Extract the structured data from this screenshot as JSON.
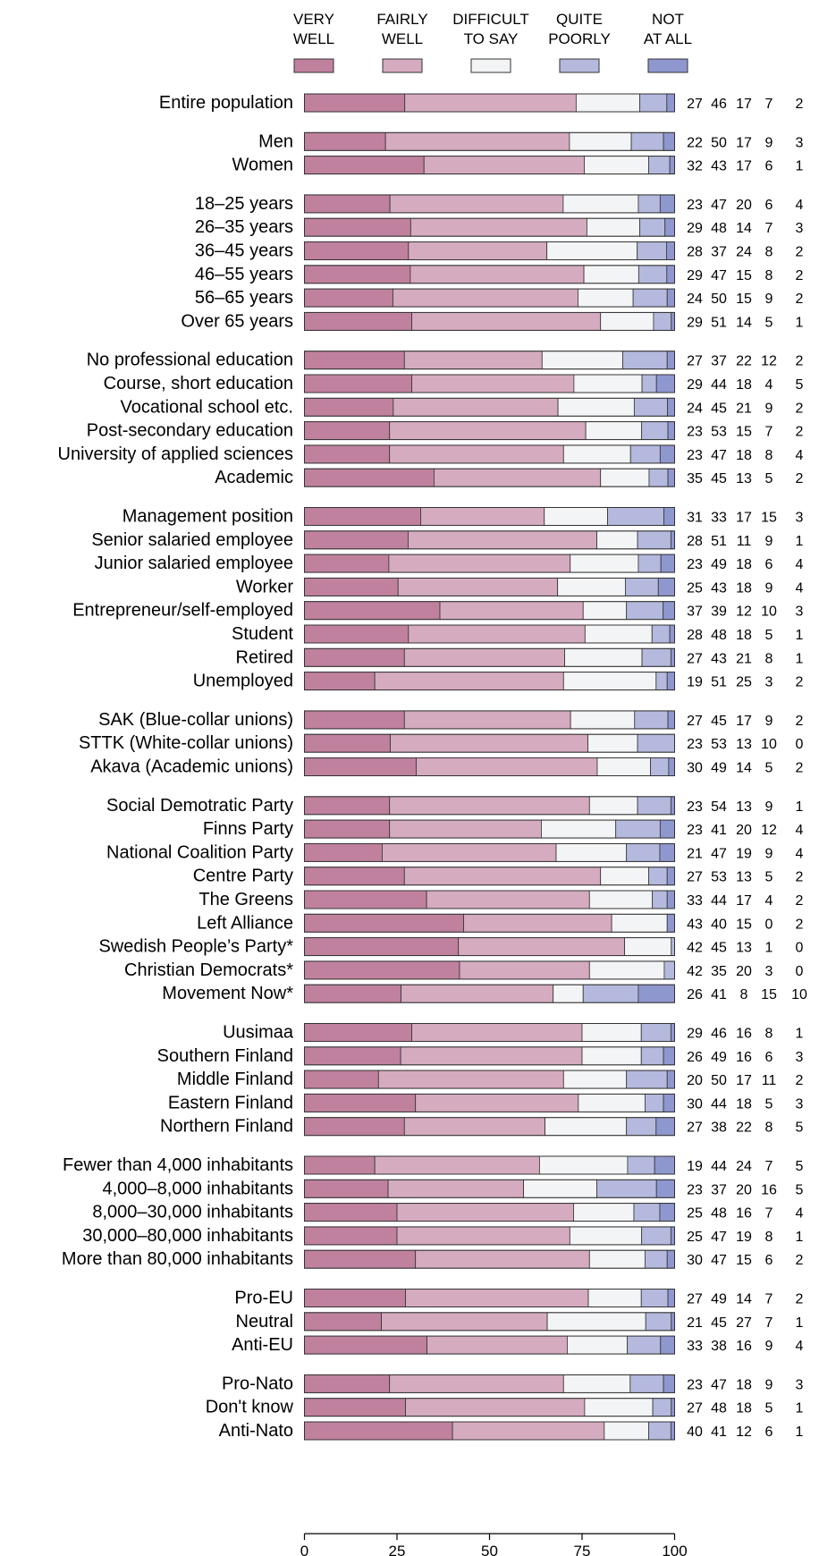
{
  "chart_data": {
    "type": "bar",
    "stacked": true,
    "orientation": "horizontal",
    "xlim": [
      0,
      100
    ],
    "xticks": [
      "0",
      "25",
      "50",
      "75",
      "100"
    ],
    "legend_position": "top",
    "series": [
      {
        "name": "VERY WELL",
        "name_lines": [
          "VERY",
          "WELL"
        ],
        "color": "#c0819e"
      },
      {
        "name": "FAIRLY WELL",
        "name_lines": [
          "FAIRLY",
          "WELL"
        ],
        "color": "#d5abbf"
      },
      {
        "name": "DIFFICULT TO SAY",
        "name_lines": [
          "DIFFICULT",
          "TO SAY"
        ],
        "color": "#f3f4f6"
      },
      {
        "name": "QUITE POORLY",
        "name_lines": [
          "QUITE",
          "POORLY"
        ],
        "color": "#b4b9dd"
      },
      {
        "name": "NOT AT ALL",
        "name_lines": [
          "NOT",
          "AT ALL"
        ],
        "color": "#8f97cf"
      }
    ],
    "groups": [
      {
        "rows": [
          {
            "label": "Entire population",
            "values": [
              27,
              46,
              17,
              7,
              2
            ],
            "bar": [
              27.1,
              46.3,
              17.2,
              7.3,
              2.1
            ]
          }
        ]
      },
      {
        "rows": [
          {
            "label": "Men",
            "values": [
              22,
              50,
              17,
              9,
              3
            ],
            "bar": [
              21.9,
              49.7,
              16.7,
              8.7,
              3.0
            ]
          },
          {
            "label": "Women",
            "values": [
              32,
              43,
              17,
              6,
              1
            ],
            "bar": [
              32.3,
              43.3,
              17.4,
              5.7,
              1.3
            ]
          }
        ]
      },
      {
        "rows": [
          {
            "label": "18–25 years",
            "values": [
              23,
              47,
              20,
              6,
              4
            ],
            "bar": [
              23.1,
              46.8,
              20.3,
              5.9,
              3.9
            ]
          },
          {
            "label": "26–35 years",
            "values": [
              29,
              48,
              14,
              7,
              3
            ],
            "bar": [
              28.7,
              47.6,
              14.3,
              6.8,
              2.6
            ]
          },
          {
            "label": "36–45 years",
            "values": [
              28,
              37,
              24,
              8,
              2
            ],
            "bar": [
              28.1,
              37.4,
              24.4,
              7.9,
              2.2
            ]
          },
          {
            "label": "46–55 years",
            "values": [
              29,
              47,
              15,
              8,
              2
            ],
            "bar": [
              28.6,
              46.9,
              14.8,
              7.6,
              2.1
            ]
          },
          {
            "label": "56–65 years",
            "values": [
              24,
              50,
              15,
              9,
              2
            ],
            "bar": [
              23.9,
              50.0,
              14.9,
              9.2,
              2.0
            ]
          },
          {
            "label": "Over 65 years",
            "values": [
              29,
              51,
              14,
              5,
              1
            ],
            "bar": [
              29.0,
              51.0,
              14.3,
              4.8,
              0.9
            ]
          }
        ]
      },
      {
        "rows": [
          {
            "label": "No professional education",
            "values": [
              27,
              37,
              22,
              12,
              2
            ],
            "bar": [
              27.0,
              37.2,
              21.8,
              12.0,
              2.0
            ]
          },
          {
            "label": "Course, short education",
            "values": [
              29,
              44,
              18,
              4,
              5
            ],
            "bar": [
              29.0,
              43.8,
              18.4,
              3.9,
              4.9
            ]
          },
          {
            "label": "Vocational school etc.",
            "values": [
              24,
              45,
              21,
              9,
              2
            ],
            "bar": [
              24.0,
              44.5,
              20.6,
              9.0,
              1.9
            ]
          },
          {
            "label": "Post-secondary education",
            "values": [
              23,
              53,
              15,
              7,
              2
            ],
            "bar": [
              23.0,
              53.0,
              15.1,
              7.1,
              1.8
            ]
          },
          {
            "label": "University of applied sciences",
            "values": [
              23,
              47,
              18,
              8,
              4
            ],
            "bar": [
              23.0,
              47.0,
              18.1,
              8.0,
              3.9
            ]
          },
          {
            "label": "Academic",
            "values": [
              35,
              45,
              13,
              5,
              2
            ],
            "bar": [
              35.0,
              45.0,
              13.1,
              5.1,
              1.8
            ]
          }
        ]
      },
      {
        "rows": [
          {
            "label": "Management position",
            "values": [
              31,
              33,
              17,
              15,
              3
            ],
            "bar": [
              31.4,
              33.4,
              17.1,
              15.2,
              2.9
            ]
          },
          {
            "label": "Senior salaried employee",
            "values": [
              28,
              51,
              11,
              9,
              1
            ],
            "bar": [
              28.0,
              51.0,
              11.0,
              9.0,
              1.0
            ]
          },
          {
            "label": "Junior salaried employee",
            "values": [
              23,
              49,
              18,
              6,
              4
            ],
            "bar": [
              22.8,
              49.0,
              18.4,
              6.1,
              3.7
            ]
          },
          {
            "label": "Worker",
            "values": [
              25,
              43,
              18,
              9,
              4
            ],
            "bar": [
              25.3,
              43.1,
              18.3,
              8.9,
              4.4
            ]
          },
          {
            "label": "Entrepreneur/self-employed",
            "values": [
              37,
              39,
              12,
              10,
              3
            ],
            "bar": [
              36.6,
              38.7,
              11.7,
              9.9,
              3.1
            ]
          },
          {
            "label": "Student",
            "values": [
              28,
              48,
              18,
              5,
              1
            ],
            "bar": [
              28.1,
              47.7,
              18.1,
              4.8,
              1.3
            ]
          },
          {
            "label": "Retired",
            "values": [
              27,
              43,
              21,
              8,
              1
            ],
            "bar": [
              27.0,
              43.3,
              20.9,
              7.8,
              1.0
            ]
          },
          {
            "label": "Unemployed",
            "values": [
              19,
              51,
              25,
              3,
              2
            ],
            "bar": [
              19.0,
              51.0,
              25.0,
              3.0,
              2.0
            ]
          }
        ]
      },
      {
        "rows": [
          {
            "label": "SAK (Blue-collar unions)",
            "values": [
              27,
              45,
              17,
              9,
              2
            ],
            "bar": [
              27.0,
              44.9,
              17.3,
              9.0,
              1.8
            ]
          },
          {
            "label": "STTK (White-collar unions)",
            "values": [
              23,
              53,
              13,
              10,
              0
            ],
            "bar": [
              23.2,
              53.4,
              13.4,
              10.0,
              0.0
            ]
          },
          {
            "label": "Akava (Academic unions)",
            "values": [
              30,
              49,
              14,
              5,
              2
            ],
            "bar": [
              30.2,
              48.9,
              14.4,
              4.9,
              1.6
            ]
          }
        ]
      },
      {
        "rows": [
          {
            "label": "Social Demotratic Party",
            "values": [
              23,
              54,
              13,
              9,
              1
            ],
            "bar": [
              23.0,
              54.0,
              13.0,
              9.0,
              1.0
            ]
          },
          {
            "label": "Finns Party",
            "values": [
              23,
              41,
              20,
              12,
              4
            ],
            "bar": [
              23.0,
              41.0,
              20.1,
              12.0,
              3.9
            ]
          },
          {
            "label": "National Coalition Party",
            "values": [
              21,
              47,
              19,
              9,
              4
            ],
            "bar": [
              21.0,
              47.0,
              19.0,
              9.0,
              4.0
            ]
          },
          {
            "label": "Centre Party",
            "values": [
              27,
              53,
              13,
              5,
              2
            ],
            "bar": [
              27.0,
              53.0,
              13.0,
              5.0,
              2.0
            ]
          },
          {
            "label": "The Greens",
            "values": [
              33,
              44,
              17,
              4,
              2
            ],
            "bar": [
              33.0,
              44.0,
              17.0,
              4.0,
              2.0
            ]
          },
          {
            "label": "Left Alliance",
            "values": [
              43,
              40,
              15,
              0,
              2
            ],
            "bar": [
              43.0,
              40.0,
              15.0,
              0.0,
              2.0
            ]
          },
          {
            "label": "Swedish People’s Party*",
            "values": [
              42,
              45,
              13,
              1,
              0
            ],
            "bar": [
              41.6,
              44.9,
              12.6,
              0.9,
              0.0
            ]
          },
          {
            "label": "Christian Democrats*",
            "values": [
              42,
              35,
              20,
              3,
              0
            ],
            "bar": [
              41.9,
              35.1,
              20.2,
              2.8,
              0.0
            ]
          },
          {
            "label": "Movement Now*",
            "values": [
              26,
              41,
              8,
              15,
              10
            ],
            "bar": [
              26.1,
              41.1,
              8.1,
              14.9,
              9.8
            ]
          }
        ]
      },
      {
        "rows": [
          {
            "label": "Uusimaa",
            "values": [
              29,
              46,
              16,
              8,
              1
            ],
            "bar": [
              29.0,
              46.0,
              16.0,
              8.0,
              1.0
            ]
          },
          {
            "label": "Southern Finland",
            "values": [
              26,
              49,
              16,
              6,
              3
            ],
            "bar": [
              26.0,
              49.0,
              16.0,
              6.0,
              3.0
            ]
          },
          {
            "label": "Middle Finland",
            "values": [
              20,
              50,
              17,
              11,
              2
            ],
            "bar": [
              20.0,
              50.0,
              17.0,
              11.0,
              2.0
            ]
          },
          {
            "label": "Eastern Finland",
            "values": [
              30,
              44,
              18,
              5,
              3
            ],
            "bar": [
              30.0,
              44.0,
              18.0,
              5.0,
              3.0
            ]
          },
          {
            "label": "Northern Finland",
            "values": [
              27,
              38,
              22,
              8,
              5
            ],
            "bar": [
              27.0,
              38.0,
              22.0,
              8.0,
              5.0
            ]
          }
        ]
      },
      {
        "rows": [
          {
            "label": "Fewer than 4,000 inhabitants",
            "values": [
              19,
              44,
              24,
              7,
              5
            ],
            "bar": [
              19.0,
              44.5,
              23.8,
              7.3,
              5.4
            ]
          },
          {
            "label": "4,000–8,000 inhabitants",
            "values": [
              23,
              37,
              20,
              16,
              5
            ],
            "bar": [
              22.6,
              36.6,
              19.8,
              16.1,
              4.9
            ]
          },
          {
            "label": "8,000–30,000 inhabitants",
            "values": [
              25,
              48,
              16,
              7,
              4
            ],
            "bar": [
              25.0,
              47.7,
              16.3,
              7.0,
              4.0
            ]
          },
          {
            "label": "30,000–80,000 inhabitants",
            "values": [
              25,
              47,
              19,
              8,
              1
            ],
            "bar": [
              25.0,
              46.7,
              19.4,
              7.9,
              1.0
            ]
          },
          {
            "label": "More than 80,000 inhabitants",
            "values": [
              30,
              47,
              15,
              6,
              2
            ],
            "bar": [
              30.0,
              47.0,
              15.0,
              6.0,
              2.0
            ]
          }
        ]
      },
      {
        "rows": [
          {
            "label": "Pro-EU",
            "values": [
              27,
              49,
              14,
              7,
              2
            ],
            "bar": [
              27.3,
              49.4,
              14.3,
              7.2,
              1.8
            ]
          },
          {
            "label": "Neutral",
            "values": [
              21,
              45,
              27,
              7,
              1
            ],
            "bar": [
              20.8,
              44.8,
              26.6,
              6.9,
              0.9
            ]
          },
          {
            "label": "Anti-EU",
            "values": [
              33,
              38,
              16,
              9,
              4
            ],
            "bar": [
              33.1,
              37.9,
              16.2,
              9.0,
              3.8
            ]
          }
        ]
      },
      {
        "rows": [
          {
            "label": "Pro-Nato",
            "values": [
              23,
              47,
              18,
              9,
              3
            ],
            "bar": [
              23.0,
              47.0,
              18.0,
              9.0,
              3.0
            ]
          },
          {
            "label": "Don't know",
            "values": [
              27,
              48,
              18,
              5,
              1
            ],
            "bar": [
              27.3,
              48.4,
              18.4,
              5.0,
              0.9
            ]
          },
          {
            "label": "Anti-Nato",
            "values": [
              40,
              41,
              12,
              6,
              1
            ],
            "bar": [
              40.0,
              41.0,
              12.0,
              6.0,
              1.0
            ]
          }
        ]
      }
    ]
  }
}
